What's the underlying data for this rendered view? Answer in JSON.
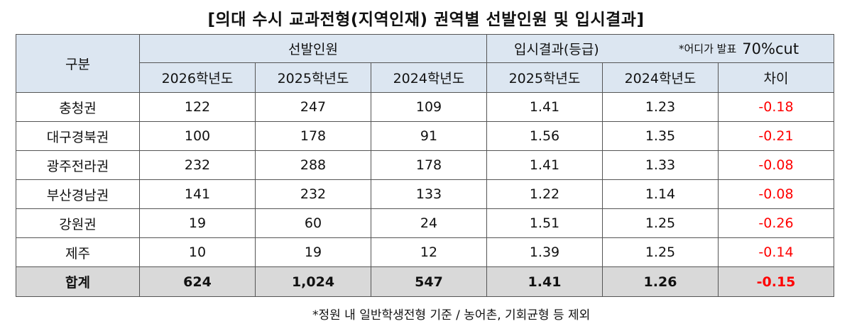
{
  "title": "[의대 수시 교과전형(지역인재) 권역별 선발인원 및 입시결과]",
  "header": {
    "division": "구분",
    "group_selection": "선발인원",
    "group_results": "입시결과(등급)",
    "results_note_prefix": "*어디가 발표",
    "results_note_cut": "70%cut",
    "columns": [
      "2026학년도",
      "2025학년도",
      "2024학년도",
      "2025학년도",
      "2024학년도",
      "차이"
    ]
  },
  "rows": [
    {
      "region": "충청권",
      "sel2026": "122",
      "sel2025": "247",
      "sel2024": "109",
      "res2025": "1.41",
      "res2024": "1.23",
      "diff": "-0.18"
    },
    {
      "region": "대구경북권",
      "sel2026": "100",
      "sel2025": "178",
      "sel2024": "91",
      "res2025": "1.56",
      "res2024": "1.35",
      "diff": "-0.21"
    },
    {
      "region": "광주전라권",
      "sel2026": "232",
      "sel2025": "288",
      "sel2024": "178",
      "res2025": "1.41",
      "res2024": "1.33",
      "diff": "-0.08"
    },
    {
      "region": "부산경남권",
      "sel2026": "141",
      "sel2025": "232",
      "sel2024": "133",
      "res2025": "1.22",
      "res2024": "1.14",
      "diff": "-0.08"
    },
    {
      "region": "강원권",
      "sel2026": "19",
      "sel2025": "60",
      "sel2024": "24",
      "res2025": "1.51",
      "res2024": "1.25",
      "diff": "-0.26"
    },
    {
      "region": "제주",
      "sel2026": "10",
      "sel2025": "19",
      "sel2024": "12",
      "res2025": "1.39",
      "res2024": "1.25",
      "diff": "-0.14"
    }
  ],
  "total": {
    "region": "합계",
    "sel2026": "624",
    "sel2025": "1,024",
    "sel2024": "547",
    "res2025": "1.41",
    "res2024": "1.26",
    "diff": "-0.15"
  },
  "footnote": "*정원 내 일반학생전형 기준 / 농어촌, 기회균형 등 제외",
  "colors": {
    "header_bg": "#dce6f1",
    "total_bg": "#d9d9d9",
    "negative": "#ff0000",
    "border": "#555555"
  }
}
